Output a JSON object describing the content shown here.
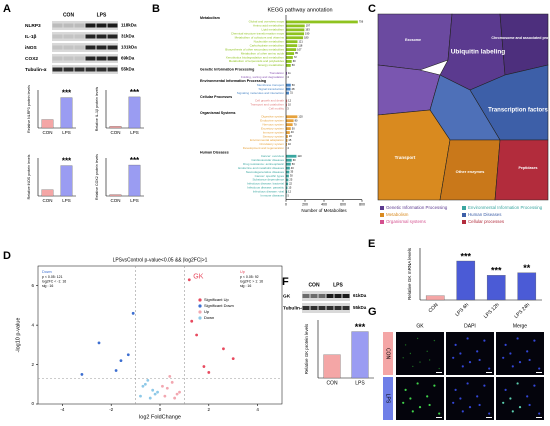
{
  "panel_a": {
    "label": "A",
    "blot": {
      "groups": [
        "CON",
        "LPS"
      ],
      "rows": [
        {
          "name": "NLRP3",
          "size": "118kDa"
        },
        {
          "name": "IL-1β",
          "size": "31kDa"
        },
        {
          "name": "iNOS",
          "size": "131kDa"
        },
        {
          "name": "COX2",
          "size": "69kDa"
        },
        {
          "name": "Tubulin-α",
          "size": "55kDa"
        }
      ]
    },
    "charts": [
      {
        "ylabel": "Relative NLRP3 protein levels",
        "categories": [
          "CON",
          "LPS"
        ],
        "values": [
          1,
          3.6
        ],
        "colors": [
          "#f4a6a6",
          "#9a9cf2"
        ],
        "ylim": [
          0,
          4.5
        ],
        "significance": "***"
      },
      {
        "ylabel": "Relative IL-1β protein levels",
        "categories": [
          "CON",
          "LPS"
        ],
        "values": [
          1,
          18
        ],
        "colors": [
          "#f4a6a6",
          "#9a9cf2"
        ],
        "ylim": [
          0,
          22
        ],
        "significance": "***"
      },
      {
        "ylabel": "Relative iNOS protein levels",
        "categories": [
          "CON",
          "LPS"
        ],
        "values": [
          1,
          4.8
        ],
        "colors": [
          "#f4a6a6",
          "#9a9cf2"
        ],
        "ylim": [
          0,
          6
        ],
        "significance": "***"
      },
      {
        "ylabel": "Relative COX2 protein levels",
        "categories": [
          "CON",
          "LPS"
        ],
        "values": [
          1,
          22
        ],
        "colors": [
          "#f4a6a6",
          "#9a9cf2"
        ],
        "ylim": [
          0,
          27
        ],
        "significance": "***"
      }
    ]
  },
  "panel_b": {
    "label": "B",
    "title": "KEGG pathway annotation",
    "xlabel": "Number of Metabolites",
    "xlim": [
      0,
      800
    ],
    "xticks": [
      0,
      200,
      400,
      600,
      800
    ],
    "groups": [
      {
        "name": "Metabolism",
        "color": "#8fc31f",
        "items": [
          {
            "name": "Global and overview maps",
            "value": 756
          },
          {
            "name": "Amino acid metabolism",
            "value": 197
          },
          {
            "name": "Lipid metabolism",
            "value": 193
          },
          {
            "name": "Chemical structure transformation maps",
            "value": 190
          },
          {
            "name": "Metabolism of cofactors and vitamins",
            "value": 180
          },
          {
            "name": "Nucleotide metabolism",
            "value": 121
          },
          {
            "name": "Carbohydrate metabolism",
            "value": 118
          },
          {
            "name": "Biosynthesis of other secondary metabolites",
            "value": 107
          },
          {
            "name": "Metabolism of other amino acids",
            "value": 85
          },
          {
            "name": "Xenobiotics biodegradation and metabolism",
            "value": 72
          },
          {
            "name": "Metabolism of terpenoids and polyketides",
            "value": 60
          },
          {
            "name": "Energy metabolism",
            "value": 50
          }
        ]
      },
      {
        "name": "Genetic Information Processing",
        "color": "#8e5bb5",
        "items": [
          {
            "name": "Translation",
            "value": 11
          },
          {
            "name": "Folding, sorting and degradation",
            "value": 4
          }
        ]
      },
      {
        "name": "Environmental Information Processing",
        "color": "#4a86c5",
        "items": [
          {
            "name": "Membrane transport",
            "value": 50
          },
          {
            "name": "Signal transduction",
            "value": 48
          },
          {
            "name": "Signaling molecules and interaction",
            "value": 31
          }
        ]
      },
      {
        "name": "Cellular Processes",
        "color": "#e07b7b",
        "items": [
          {
            "name": "Cell growth and death",
            "value": 12
          },
          {
            "name": "Transport and catabolism",
            "value": 10
          },
          {
            "name": "Cell motility",
            "value": 3
          }
        ]
      },
      {
        "name": "Organismal Systems",
        "color": "#e6a23c",
        "items": [
          {
            "name": "Digestive system",
            "value": 120
          },
          {
            "name": "Endocrine system",
            "value": 80
          },
          {
            "name": "Nervous system",
            "value": 70
          },
          {
            "name": "Excretory system",
            "value": 50
          },
          {
            "name": "Immune system",
            "value": 40
          },
          {
            "name": "Sensory system",
            "value": 20
          },
          {
            "name": "Environmental adaptation",
            "value": 15
          },
          {
            "name": "Circulatory system",
            "value": 10
          },
          {
            "name": "Development and regeneration",
            "value": 4
          }
        ]
      },
      {
        "name": "Human Diseases",
        "color": "#3aa6a0",
        "items": [
          {
            "name": "Cancer: overview",
            "value": 110
          },
          {
            "name": "Cardiovascular diseases",
            "value": 60
          },
          {
            "name": "Drug resistance: antineoplastic",
            "value": 50
          },
          {
            "name": "Endocrine and metabolic diseases",
            "value": 40
          },
          {
            "name": "Neurodegenerative diseases",
            "value": 35
          },
          {
            "name": "Cancer: specific types",
            "value": 30
          },
          {
            "name": "Substance dependence",
            "value": 25
          },
          {
            "name": "Infectious disease: bacterial",
            "value": 22
          },
          {
            "name": "Infectious disease: parasitic",
            "value": 15
          },
          {
            "name": "Infectious disease: viral",
            "value": 12
          },
          {
            "name": "Immune diseases",
            "value": 5
          }
        ]
      }
    ]
  },
  "panel_c": {
    "label": "C",
    "cells": [
      "Ubiquitin labeling",
      "Transcription factors",
      "Chromosome and associated proteins",
      "Transport",
      "Other enzymes",
      "Peptidases",
      "Exosome"
    ],
    "legend": [
      {
        "name": "Genetic Information Processing",
        "color": "#5b3a8f"
      },
      {
        "name": "Environmental Information Processing",
        "color": "#3aa6a0"
      },
      {
        "name": "Metabolism",
        "color": "#d98a1f"
      },
      {
        "name": "Human Diseases",
        "color": "#3d5fa8"
      },
      {
        "name": "Organismal systems",
        "color": "#d44f8e"
      },
      {
        "name": "Cellular processes",
        "color": "#b22c3c"
      }
    ]
  },
  "panel_d": {
    "label": "D",
    "type": "scatter",
    "title": "LPSvsControl p-value<0.05 && |log2FC|>1",
    "xlabel": "log2 FoldChange",
    "ylabel": "-log10 p-value",
    "xlim": [
      -5,
      5
    ],
    "ylim": [
      0,
      7
    ],
    "xticks": [
      -4,
      -2,
      0,
      2,
      4
    ],
    "yticks": [
      0,
      2,
      4,
      6
    ],
    "thresholds": {
      "log2fc": [
        -1,
        1
      ],
      "pvalue": 1.3
    },
    "down_box": {
      "title": "Down",
      "lines": [
        "p < 0.05: 121",
        "log2FC < -1: 16",
        "sig : 16"
      ]
    },
    "up_box": {
      "title": "Up",
      "lines": [
        "p < 0.05: 92",
        "log2FC > 1: 16",
        "sig : 16"
      ]
    },
    "annotation": {
      "text": "GK",
      "x": 1.2,
      "y": 6.3
    },
    "series": [
      {
        "name": "Significant Up",
        "color": "#e84a5f",
        "x": [
          1.2,
          1.5,
          2.0,
          1.3,
          2.6,
          1.8,
          3.0
        ],
        "y": [
          6.3,
          3.5,
          1.6,
          4.2,
          2.8,
          1.9,
          2.3
        ]
      },
      {
        "name": "Significant Down",
        "color": "#3d6fd1",
        "x": [
          -1.3,
          -1.8,
          -2.5,
          -1.1,
          -3.2,
          -1.6
        ],
        "y": [
          2.5,
          1.7,
          3.1,
          4.6,
          1.5,
          2.2
        ]
      },
      {
        "name": "Up",
        "color": "#f2a7b0",
        "x": [
          0.3,
          0.5,
          0.2,
          0.8,
          0.4,
          0.6,
          0.1,
          0.7
        ],
        "y": [
          0.8,
          1.1,
          0.4,
          0.6,
          1.4,
          0.3,
          0.9,
          0.5
        ]
      },
      {
        "name": "Down",
        "color": "#8ec9e8",
        "x": [
          -0.3,
          -0.5,
          -0.2,
          -0.7,
          -0.4,
          -0.6,
          -0.1,
          -0.8
        ],
        "y": [
          0.7,
          1.2,
          0.5,
          0.9,
          0.3,
          1.0,
          0.6,
          0.4
        ]
      }
    ]
  },
  "panel_e": {
    "label": "E",
    "ylabel": "Relative GK mRNA levels",
    "categories": [
      "CON",
      "LPS 6h",
      "LPS 12h",
      "LPS 24h"
    ],
    "values": [
      1,
      9,
      5.7,
      6.3
    ],
    "colors": [
      "#f4a6a6",
      "#4b5bd6",
      "#4b5bd6",
      "#4b5bd6"
    ],
    "ylim": [
      0,
      12
    ],
    "significance": [
      null,
      "***",
      "***",
      "**"
    ]
  },
  "panel_f": {
    "label": "F",
    "blot": {
      "groups": [
        "CON",
        "LPS"
      ],
      "rows": [
        {
          "name": "GK",
          "size": "61kDa"
        },
        {
          "name": "Tubulin-α",
          "size": "55kDa"
        }
      ]
    },
    "chart": {
      "ylabel": "Relative GK protein levels",
      "categories": [
        "CON",
        "LPS"
      ],
      "values": [
        1,
        2
      ],
      "colors": [
        "#f4a6a6",
        "#9a9cf2"
      ],
      "ylim": [
        0,
        2.5
      ],
      "significance": "***"
    }
  },
  "panel_g": {
    "label": "G",
    "columns": [
      "GK",
      "DAPI",
      "Merge"
    ],
    "rows": [
      {
        "name": "CON",
        "color": "#f4a6a6"
      },
      {
        "name": "LPS",
        "color": "#6f7fe8"
      }
    ]
  }
}
